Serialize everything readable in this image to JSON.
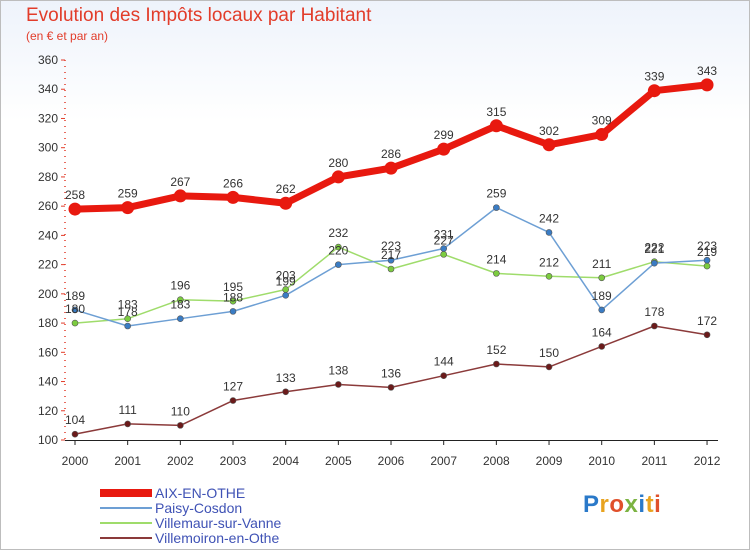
{
  "header": {
    "title": "Evolution des Impôts locaux par Habitant",
    "subtitle": "(en € et par an)"
  },
  "logo": {
    "text": "Proxiti",
    "letters": [
      "P",
      "r",
      "o",
      "x",
      "i",
      "t",
      "i"
    ],
    "colors": [
      "#2a79c9",
      "#e8a31f",
      "#e0502b",
      "#7cb342",
      "#2a79c9",
      "#e8a31f",
      "#e0502b"
    ]
  },
  "chart_data": {
    "type": "line",
    "title": "Evolution des Impôts locaux par Habitant",
    "subtitle": "(en € et par an)",
    "xlabel": "",
    "ylabel": "",
    "ylim": [
      100,
      360
    ],
    "yticks": [
      100,
      120,
      140,
      160,
      180,
      200,
      220,
      240,
      260,
      280,
      300,
      320,
      340,
      360
    ],
    "grid": false,
    "legend_position": "bottom-left",
    "x": [
      "2000",
      "2001",
      "2002",
      "2003",
      "2004",
      "2005",
      "2006",
      "2007",
      "2008",
      "2009",
      "2010",
      "2011",
      "2012"
    ],
    "series": [
      {
        "name": "AIX-EN-OTHE",
        "color": "#e8190f",
        "width": 7,
        "marker_fill": "#e8190f",
        "values": [
          258,
          259,
          267,
          266,
          262,
          280,
          286,
          299,
          315,
          302,
          309,
          339,
          343
        ]
      },
      {
        "name": "Paisy-Cosdon",
        "color": "#6d9fd4",
        "width": 1.5,
        "marker_fill": "#3a7cc4",
        "values": [
          189,
          178,
          183,
          188,
          199,
          220,
          223,
          231,
          259,
          242,
          189,
          221,
          223
        ]
      },
      {
        "name": "Villemaur-sur-Vanne",
        "color": "#9fdc6b",
        "width": 1.5,
        "marker_fill": "#7ccc3f",
        "values": [
          180,
          183,
          196,
          195,
          203,
          232,
          217,
          227,
          214,
          212,
          211,
          222,
          219
        ]
      },
      {
        "name": "Villemoiron-en-Othe",
        "color": "#8b3a3a",
        "width": 1.5,
        "marker_fill": "#6b1a1a",
        "values": [
          104,
          111,
          110,
          127,
          133,
          138,
          136,
          144,
          152,
          150,
          164,
          178,
          172
        ]
      }
    ]
  }
}
